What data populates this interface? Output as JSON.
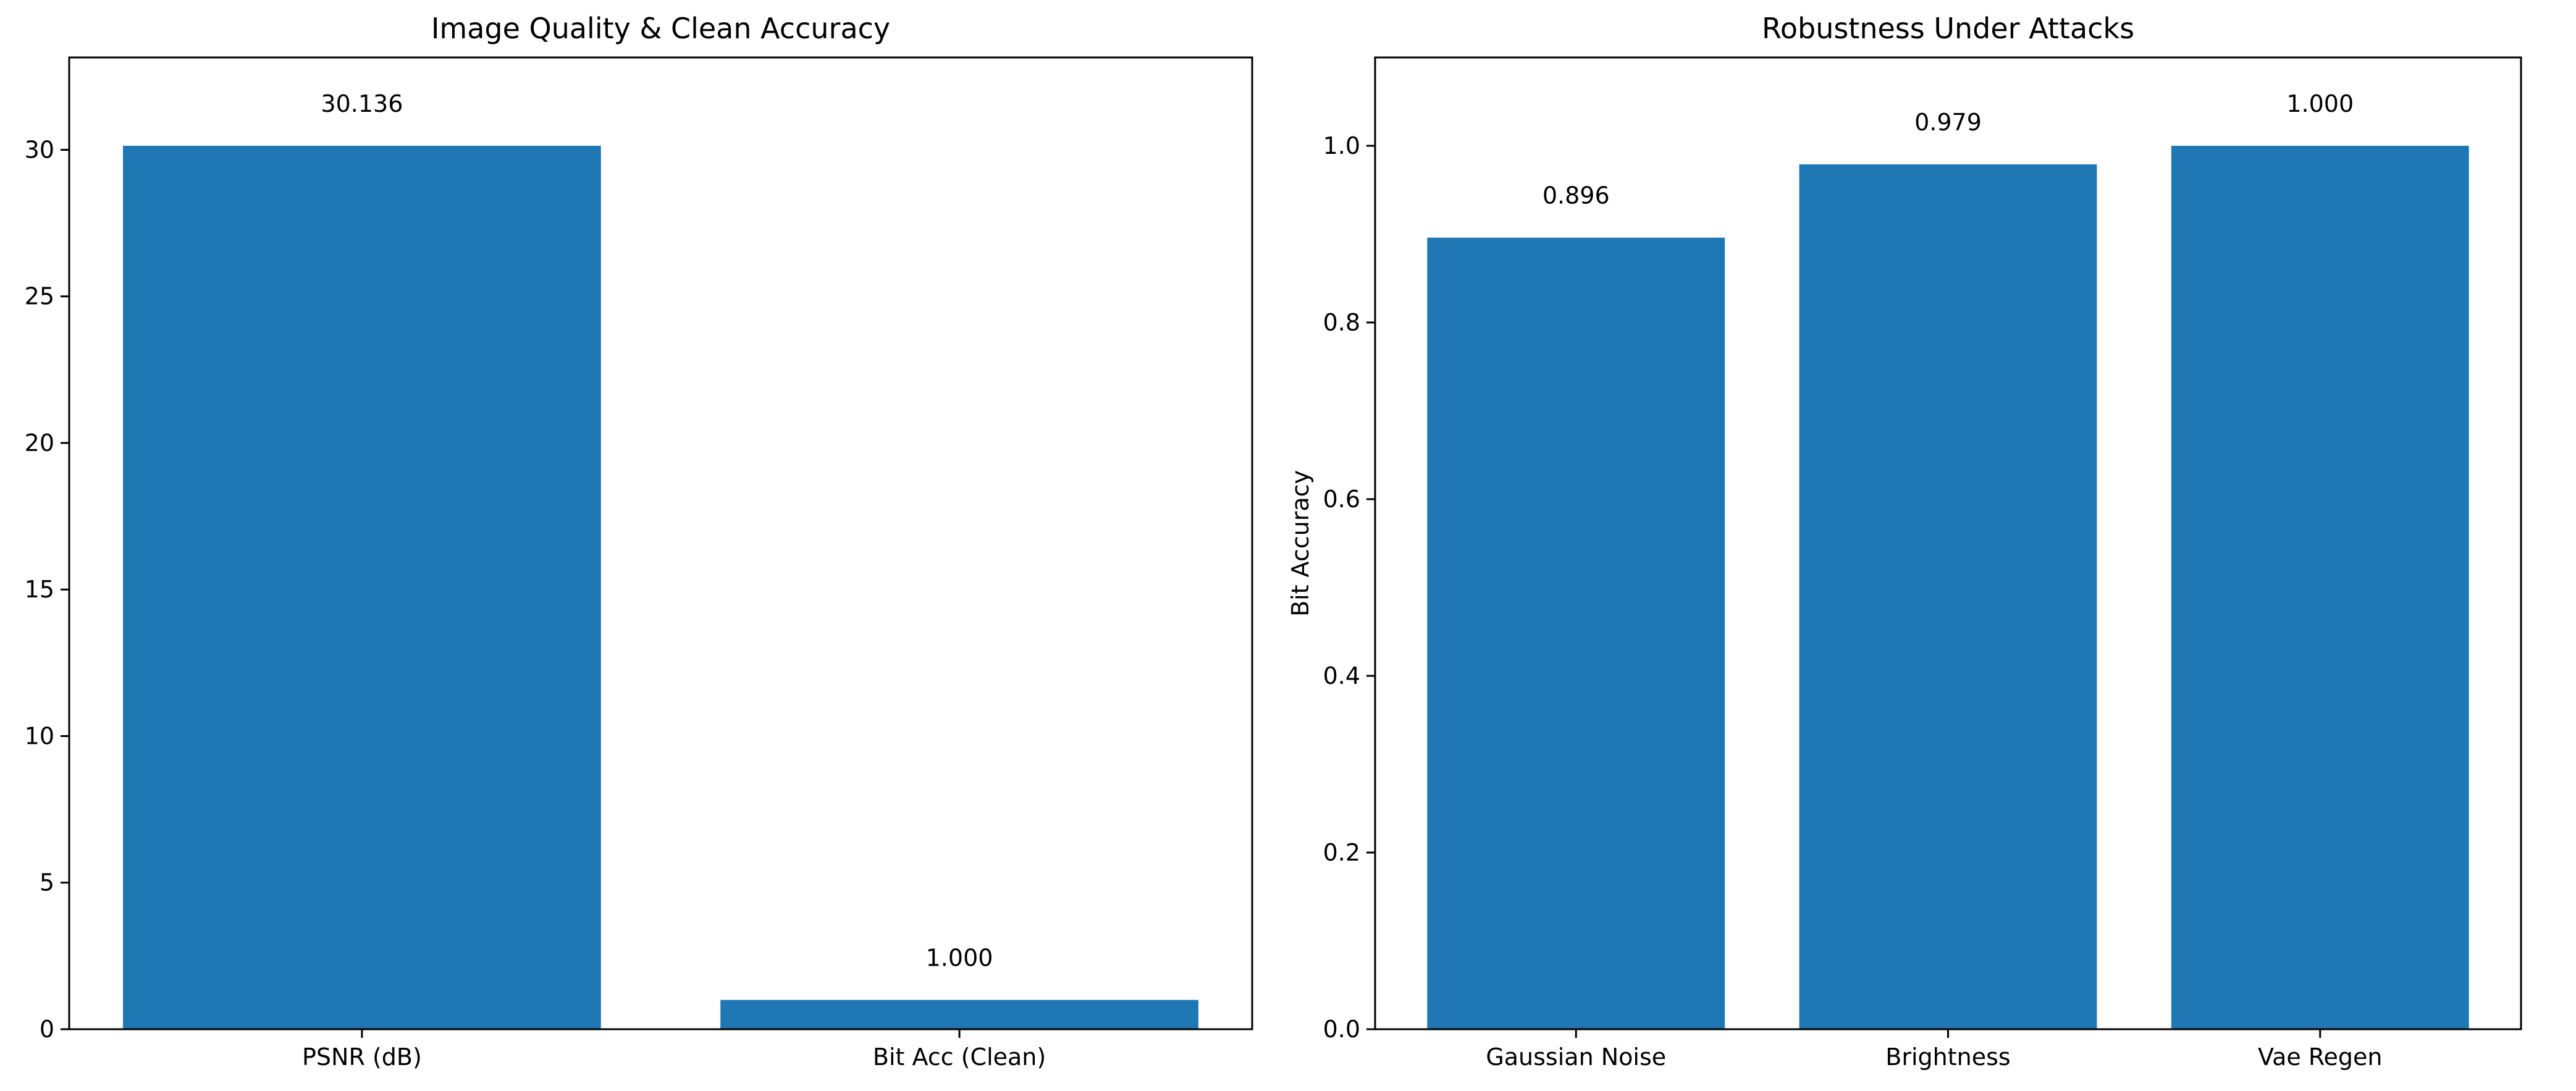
{
  "chart_data": [
    {
      "type": "bar",
      "title": "Image Quality & Clean Accuracy",
      "xlabel": "",
      "ylabel": "",
      "categories": [
        "PSNR (dB)",
        "Bit Acc (Clean)"
      ],
      "values": [
        30.136,
        1.0
      ],
      "data_labels": [
        "30.136",
        "1.000"
      ],
      "ylim": [
        0,
        33.15
      ],
      "yticks": [
        0,
        5,
        10,
        15,
        20,
        25,
        30
      ],
      "ytick_labels": [
        "0",
        "5",
        "10",
        "15",
        "20",
        "25",
        "30"
      ],
      "bar_color": "#1f77b4",
      "grid": false,
      "legend": "none"
    },
    {
      "type": "bar",
      "title": "Robustness Under Attacks",
      "xlabel": "",
      "ylabel": "Bit Accuracy",
      "categories": [
        "Gaussian Noise",
        "Brightness",
        "Vae Regen"
      ],
      "values": [
        0.896,
        0.979,
        1.0
      ],
      "data_labels": [
        "0.896",
        "0.979",
        "1.000"
      ],
      "ylim": [
        0,
        1.1
      ],
      "yticks": [
        0,
        0.2,
        0.4,
        0.6,
        0.8,
        1.0
      ],
      "ytick_labels": [
        "0.0",
        "0.2",
        "0.4",
        "0.6",
        "0.8",
        "1.0"
      ],
      "bar_color": "#1f77b4",
      "grid": false,
      "legend": "none"
    }
  ]
}
